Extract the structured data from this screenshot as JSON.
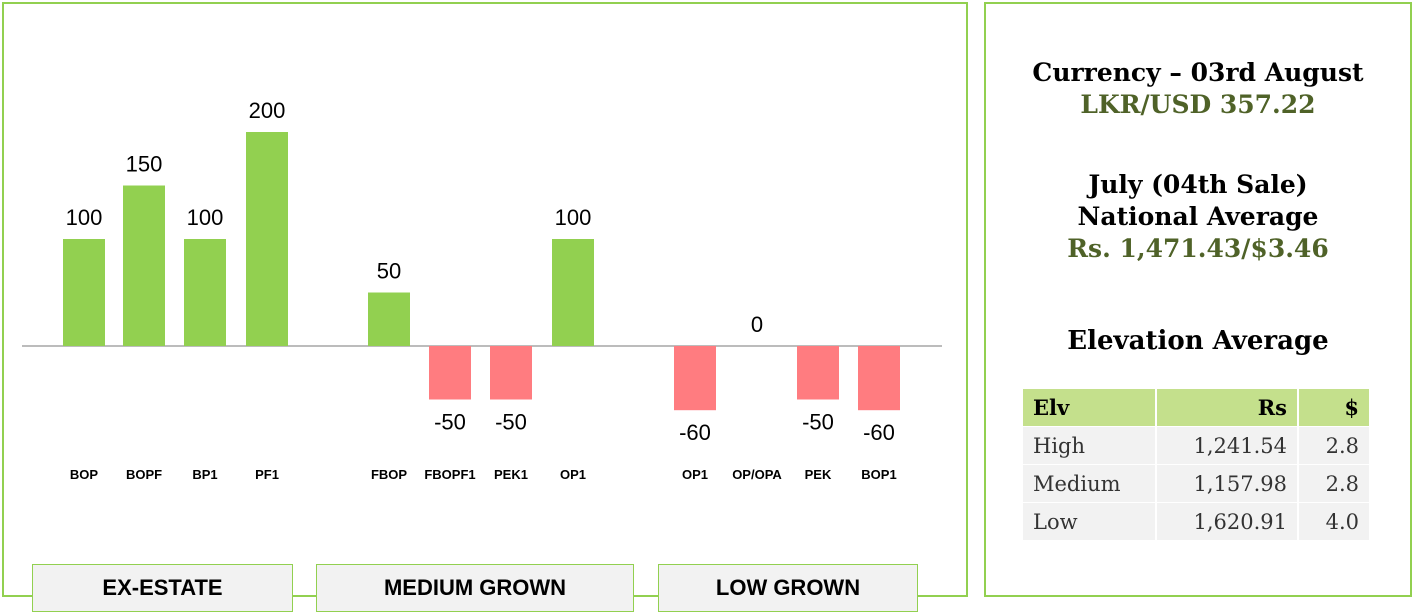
{
  "chart_data": {
    "type": "bar",
    "categories": [
      "BOP",
      "BOPF",
      "BP1",
      "PF1",
      "FBOP",
      "FBOPF1",
      "PEK1",
      "OP1",
      "OP1",
      "OP/OPA",
      "PEK",
      "BOP1"
    ],
    "values": [
      100,
      150,
      100,
      200,
      50,
      -50,
      -50,
      100,
      -60,
      0,
      -50,
      -60
    ],
    "groups": [
      "EX-ESTATE",
      "MEDIUM GROWN",
      "LOW GROWN"
    ],
    "group_membership": [
      0,
      0,
      0,
      0,
      1,
      1,
      1,
      1,
      2,
      2,
      2,
      2
    ],
    "ylim": [
      -60,
      200
    ],
    "positive_color": "#92d050",
    "negative_color": "#ff7c80",
    "title": "",
    "xlabel": "",
    "ylabel": ""
  },
  "info": {
    "currency_heading": "Currency – 03rd August",
    "currency_value": "LKR/USD 357.22",
    "sale_heading": "July (04th Sale)",
    "sale_subheading": "National Average",
    "sale_value": "Rs. 1,471.43/$3.46",
    "elevation_heading": "Elevation Average"
  },
  "elevation_table": {
    "headers": [
      "Elv",
      "Rs",
      "$"
    ],
    "rows": [
      [
        "High",
        "1,241.54",
        "2.8"
      ],
      [
        "Medium",
        "1,157.98",
        "2.8"
      ],
      [
        "Low",
        "1,620.91",
        "4.0"
      ]
    ]
  },
  "colors": {
    "border": "#92d050",
    "accent_text": "#4f6228",
    "header_fill": "#c4e08c"
  }
}
